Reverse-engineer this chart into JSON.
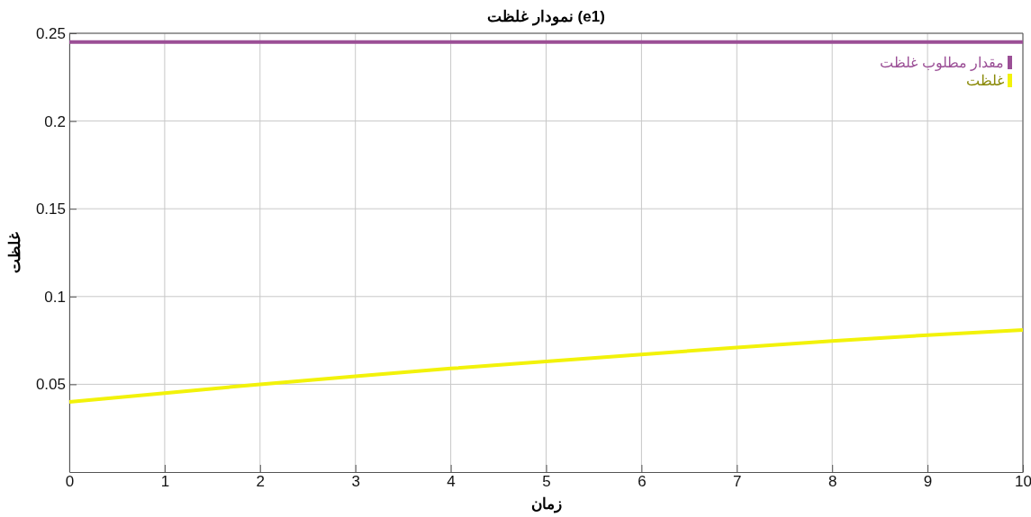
{
  "chart_data": {
    "type": "line",
    "title": "نمودار غلظت (e1)",
    "xlabel": "زمان",
    "ylabel": "غلظت",
    "x": [
      0,
      1,
      2,
      3,
      4,
      5,
      6,
      7,
      8,
      9,
      10
    ],
    "series": [
      {
        "name": "مقدار مطلوب غلظت",
        "color": "#9b4f96",
        "values": [
          0.245,
          0.245,
          0.245,
          0.245,
          0.245,
          0.245,
          0.245,
          0.245,
          0.245,
          0.245,
          0.245
        ]
      },
      {
        "name": "غلظت",
        "color": "#f2f20a",
        "values": [
          0.04,
          0.045,
          0.05,
          0.0545,
          0.059,
          0.063,
          0.067,
          0.071,
          0.0747,
          0.078,
          0.081
        ]
      }
    ],
    "xlim": [
      0,
      10
    ],
    "xticks": [
      0,
      1,
      2,
      3,
      4,
      5,
      6,
      7,
      8,
      9,
      10
    ],
    "ylim": [
      0,
      0.25
    ],
    "yticks": [
      0.05,
      0.1,
      0.15,
      0.2,
      0.25
    ],
    "grid": true,
    "legend": "top right"
  }
}
